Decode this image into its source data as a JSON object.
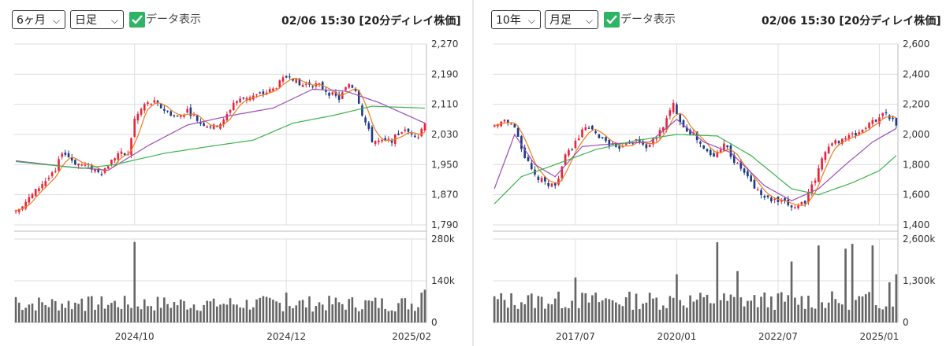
{
  "left": {
    "period": "6ヶ月",
    "interval": "日足",
    "data_checkbox_label": "データ表示",
    "timestamp": "02/06 15:30 [20分ディレイ株価]"
  },
  "right": {
    "period": "10年",
    "interval": "月足",
    "data_checkbox_label": "データ表示",
    "timestamp": "02/06 15:30 [20分ディレイ株価]"
  },
  "colors": {
    "up": "#e8243c",
    "down": "#1e3a8a",
    "ma_short": "#f07c1c",
    "ma_mid": "#9b4db5",
    "ma_long": "#3cb44b",
    "volume": "#666666",
    "grid": "#dddddd"
  },
  "chart_data": [
    {
      "type": "candlestick",
      "title": "",
      "price_ticks": [
        "1,790",
        "1,870",
        "1,950",
        "2,030",
        "2,110",
        "2,190",
        "2,270"
      ],
      "price_ylim": [
        1790,
        2270
      ],
      "volume_ticks": [
        "0",
        "140k",
        "280k"
      ],
      "volume_ylim": [
        0,
        280000
      ],
      "x_ticks": [
        "2024/10",
        "2024/12",
        "2025/02"
      ],
      "n_bars": 125,
      "x_tick_index": [
        36,
        82,
        120
      ],
      "key_points": [
        {
          "i": 0,
          "v": 1830
        },
        {
          "i": 4,
          "v": 1860
        },
        {
          "i": 8,
          "v": 1900
        },
        {
          "i": 12,
          "v": 1930
        },
        {
          "i": 14,
          "v": 1985
        },
        {
          "i": 18,
          "v": 1955
        },
        {
          "i": 22,
          "v": 1945
        },
        {
          "i": 26,
          "v": 1930
        },
        {
          "i": 29,
          "v": 1960
        },
        {
          "i": 31,
          "v": 1980
        },
        {
          "i": 34,
          "v": 1975
        },
        {
          "i": 36,
          "v": 2070
        },
        {
          "i": 39,
          "v": 2110
        },
        {
          "i": 42,
          "v": 2115
        },
        {
          "i": 45,
          "v": 2095
        },
        {
          "i": 49,
          "v": 2075
        },
        {
          "i": 52,
          "v": 2095
        },
        {
          "i": 56,
          "v": 2060
        },
        {
          "i": 60,
          "v": 2050
        },
        {
          "i": 63,
          "v": 2065
        },
        {
          "i": 66,
          "v": 2115
        },
        {
          "i": 70,
          "v": 2130
        },
        {
          "i": 74,
          "v": 2135
        },
        {
          "i": 78,
          "v": 2150
        },
        {
          "i": 81,
          "v": 2175
        },
        {
          "i": 83,
          "v": 2190
        },
        {
          "i": 86,
          "v": 2160
        },
        {
          "i": 89,
          "v": 2165
        },
        {
          "i": 92,
          "v": 2160
        },
        {
          "i": 95,
          "v": 2140
        },
        {
          "i": 98,
          "v": 2125
        },
        {
          "i": 101,
          "v": 2165
        },
        {
          "i": 103,
          "v": 2150
        },
        {
          "i": 105,
          "v": 2085
        },
        {
          "i": 108,
          "v": 2015
        },
        {
          "i": 111,
          "v": 2010
        },
        {
          "i": 114,
          "v": 2015
        },
        {
          "i": 117,
          "v": 2040
        },
        {
          "i": 120,
          "v": 2035
        },
        {
          "i": 122,
          "v": 2025
        },
        {
          "i": 124,
          "v": 2065
        }
      ],
      "ma_long_points": [
        {
          "i": 0,
          "v": 1958
        },
        {
          "i": 20,
          "v": 1940
        },
        {
          "i": 30,
          "v": 1950
        },
        {
          "i": 45,
          "v": 1980
        },
        {
          "i": 60,
          "v": 2000
        },
        {
          "i": 72,
          "v": 2015
        },
        {
          "i": 84,
          "v": 2060
        },
        {
          "i": 96,
          "v": 2080
        },
        {
          "i": 108,
          "v": 2105
        },
        {
          "i": 124,
          "v": 2100
        }
      ],
      "ma_mid_points": [
        {
          "i": 0,
          "v": 1960
        },
        {
          "i": 15,
          "v": 1945
        },
        {
          "i": 28,
          "v": 1935
        },
        {
          "i": 40,
          "v": 2000
        },
        {
          "i": 52,
          "v": 2055
        },
        {
          "i": 65,
          "v": 2080
        },
        {
          "i": 78,
          "v": 2100
        },
        {
          "i": 90,
          "v": 2150
        },
        {
          "i": 100,
          "v": 2145
        },
        {
          "i": 110,
          "v": 2115
        },
        {
          "i": 124,
          "v": 2060
        }
      ],
      "volume_profile": {
        "base": 60000,
        "peaks": [
          {
            "i": 36,
            "v": 270000
          },
          {
            "i": 0,
            "v": 85000
          },
          {
            "i": 20,
            "v": 80000
          },
          {
            "i": 60,
            "v": 80000
          },
          {
            "i": 82,
            "v": 100000
          },
          {
            "i": 124,
            "v": 110000
          },
          {
            "i": 123,
            "v": 100000
          }
        ]
      }
    },
    {
      "type": "candlestick",
      "title": "",
      "price_ticks": [
        "1,400",
        "1,600",
        "1,800",
        "2,000",
        "2,200",
        "2,400",
        "2,600"
      ],
      "price_ylim": [
        1400,
        2600
      ],
      "volume_ticks": [
        "0",
        "1,300k",
        "2,600k"
      ],
      "volume_ylim": [
        0,
        2600000
      ],
      "x_ticks": [
        "2017/07",
        "2020/01",
        "2022/07",
        "2025/01"
      ],
      "n_bars": 120,
      "x_tick_index": [
        24,
        54,
        84,
        114
      ],
      "key_points": [
        {
          "i": 0,
          "v": 2050
        },
        {
          "i": 3,
          "v": 2100
        },
        {
          "i": 6,
          "v": 2050
        },
        {
          "i": 9,
          "v": 1850
        },
        {
          "i": 12,
          "v": 1720
        },
        {
          "i": 15,
          "v": 1680
        },
        {
          "i": 18,
          "v": 1660
        },
        {
          "i": 21,
          "v": 1850
        },
        {
          "i": 24,
          "v": 1950
        },
        {
          "i": 27,
          "v": 2050
        },
        {
          "i": 30,
          "v": 2000
        },
        {
          "i": 33,
          "v": 1960
        },
        {
          "i": 36,
          "v": 1900
        },
        {
          "i": 39,
          "v": 1950
        },
        {
          "i": 42,
          "v": 1960
        },
        {
          "i": 45,
          "v": 1920
        },
        {
          "i": 48,
          "v": 1980
        },
        {
          "i": 51,
          "v": 2100
        },
        {
          "i": 53,
          "v": 2200
        },
        {
          "i": 56,
          "v": 2050
        },
        {
          "i": 59,
          "v": 2000
        },
        {
          "i": 62,
          "v": 1900
        },
        {
          "i": 65,
          "v": 1850
        },
        {
          "i": 68,
          "v": 1950
        },
        {
          "i": 71,
          "v": 1820
        },
        {
          "i": 74,
          "v": 1750
        },
        {
          "i": 77,
          "v": 1650
        },
        {
          "i": 80,
          "v": 1580
        },
        {
          "i": 83,
          "v": 1560
        },
        {
          "i": 86,
          "v": 1540
        },
        {
          "i": 89,
          "v": 1520
        },
        {
          "i": 92,
          "v": 1560
        },
        {
          "i": 95,
          "v": 1700
        },
        {
          "i": 98,
          "v": 1900
        },
        {
          "i": 101,
          "v": 1950
        },
        {
          "i": 104,
          "v": 1980
        },
        {
          "i": 107,
          "v": 2000
        },
        {
          "i": 110,
          "v": 2050
        },
        {
          "i": 113,
          "v": 2100
        },
        {
          "i": 116,
          "v": 2150
        },
        {
          "i": 119,
          "v": 2060
        }
      ],
      "ma_long_points": [
        {
          "i": 0,
          "v": 1540
        },
        {
          "i": 8,
          "v": 1720
        },
        {
          "i": 18,
          "v": 1800
        },
        {
          "i": 30,
          "v": 1900
        },
        {
          "i": 42,
          "v": 1960
        },
        {
          "i": 54,
          "v": 2000
        },
        {
          "i": 66,
          "v": 1990
        },
        {
          "i": 76,
          "v": 1860
        },
        {
          "i": 88,
          "v": 1640
        },
        {
          "i": 96,
          "v": 1600
        },
        {
          "i": 106,
          "v": 1680
        },
        {
          "i": 114,
          "v": 1760
        },
        {
          "i": 119,
          "v": 1860
        }
      ],
      "ma_mid_points": [
        {
          "i": 0,
          "v": 1640
        },
        {
          "i": 6,
          "v": 2000
        },
        {
          "i": 12,
          "v": 1800
        },
        {
          "i": 18,
          "v": 1720
        },
        {
          "i": 26,
          "v": 1920
        },
        {
          "i": 36,
          "v": 1940
        },
        {
          "i": 46,
          "v": 1950
        },
        {
          "i": 54,
          "v": 2100
        },
        {
          "i": 62,
          "v": 1950
        },
        {
          "i": 70,
          "v": 1880
        },
        {
          "i": 80,
          "v": 1660
        },
        {
          "i": 88,
          "v": 1560
        },
        {
          "i": 96,
          "v": 1640
        },
        {
          "i": 104,
          "v": 1800
        },
        {
          "i": 112,
          "v": 1950
        },
        {
          "i": 119,
          "v": 2040
        }
      ],
      "volume_profile": {
        "base": 650000,
        "peaks": [
          {
            "i": 24,
            "v": 1400000
          },
          {
            "i": 54,
            "v": 1500000
          },
          {
            "i": 66,
            "v": 2500000
          },
          {
            "i": 72,
            "v": 1600000
          },
          {
            "i": 88,
            "v": 1900000
          },
          {
            "i": 96,
            "v": 2400000
          },
          {
            "i": 104,
            "v": 2300000
          },
          {
            "i": 106,
            "v": 2450000
          },
          {
            "i": 112,
            "v": 2400000
          },
          {
            "i": 117,
            "v": 1250000
          },
          {
            "i": 119,
            "v": 1500000
          }
        ]
      }
    }
  ]
}
